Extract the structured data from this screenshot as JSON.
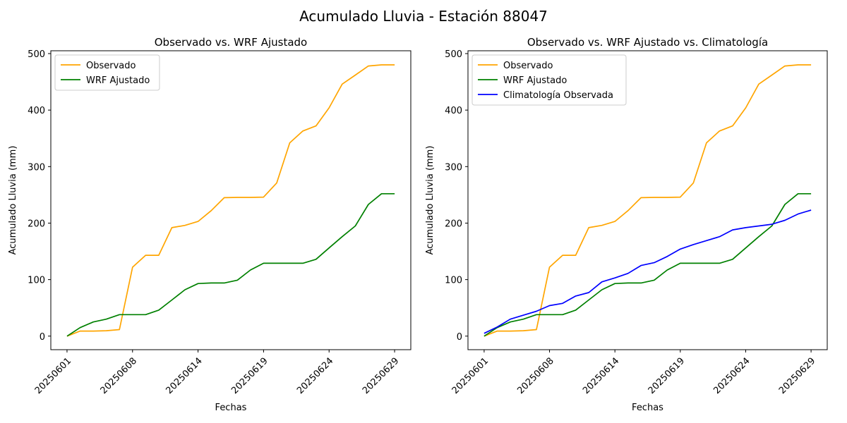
{
  "figure": {
    "title": "Acumulado Lluvia - Estación 88047"
  },
  "colors": {
    "observado": "#FFA500",
    "wrf": "#008000",
    "clim": "#0000FF"
  },
  "chart_data": [
    {
      "type": "line",
      "title": "Observado vs. WRF Ajustado",
      "xlabel": "Fechas",
      "ylabel": "Acumulado Lluvia (mm)",
      "ylim": [
        -24,
        505
      ],
      "yticks": [
        0,
        100,
        200,
        300,
        400,
        500
      ],
      "xticks": [
        "20250601",
        "20250608",
        "20250614",
        "20250619",
        "20250624",
        "20250629"
      ],
      "xtick_index": [
        0,
        5,
        10,
        15,
        20,
        25
      ],
      "legend_position": "top-left",
      "series": [
        {
          "name": "Observado",
          "color": "#FFA500",
          "values": [
            0,
            9,
            9,
            9.5,
            11.5,
            122,
            143,
            143,
            192,
            196,
            203,
            222,
            245,
            245.5,
            245.5,
            246,
            271,
            342,
            363,
            372,
            404,
            446,
            462,
            478,
            480,
            480
          ]
        },
        {
          "name": "WRF Ajustado",
          "color": "#008000",
          "values": [
            0,
            15,
            25,
            30,
            38,
            38,
            38,
            46,
            64,
            82,
            93,
            94,
            94,
            99,
            117,
            129,
            129,
            129,
            129,
            136,
            156,
            176,
            195,
            233,
            252,
            252
          ]
        }
      ]
    },
    {
      "type": "line",
      "title": "Observado vs. WRF Ajustado vs. Climatología",
      "xlabel": "Fechas",
      "ylabel": "Acumulado Lluvia (mm)",
      "ylim": [
        -24,
        505
      ],
      "yticks": [
        0,
        100,
        200,
        300,
        400,
        500
      ],
      "xticks": [
        "20250601",
        "20250608",
        "20250614",
        "20250619",
        "20250624",
        "20250629"
      ],
      "xtick_index": [
        0,
        5,
        10,
        15,
        20,
        25
      ],
      "legend_position": "top-left",
      "series": [
        {
          "name": "Observado",
          "color": "#FFA500",
          "values": [
            0,
            9,
            9,
            9.5,
            11.5,
            122,
            143,
            143,
            192,
            196,
            203,
            222,
            245,
            245.5,
            245.5,
            246,
            271,
            342,
            363,
            372,
            404,
            446,
            462,
            478,
            480,
            480
          ]
        },
        {
          "name": "WRF Ajustado",
          "color": "#008000",
          "values": [
            0,
            15,
            25,
            30,
            38,
            38,
            38,
            46,
            64,
            82,
            93,
            94,
            94,
            99,
            117,
            129,
            129,
            129,
            129,
            136,
            156,
            176,
            195,
            233,
            252,
            252
          ]
        },
        {
          "name": "Climatología Observada",
          "color": "#0000FF",
          "values": [
            5,
            16,
            30,
            37,
            44,
            54,
            58,
            71,
            77,
            96,
            103,
            111,
            125,
            130,
            141,
            154,
            162,
            169,
            176,
            188,
            192,
            195,
            198,
            205,
            216,
            223
          ]
        }
      ]
    }
  ]
}
